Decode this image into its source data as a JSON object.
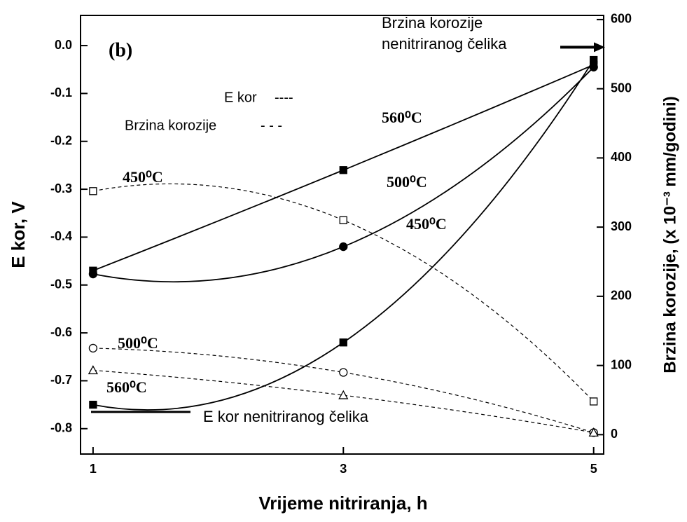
{
  "chart_data": {
    "type": "line",
    "xlabel": "Vrijeme nitriranja, h",
    "ylabel": "E kor, V",
    "y2label": "Brzina korozije, (x 10⁻³ mm/godini)",
    "panel_label": "(b)",
    "x": [
      1,
      3,
      5
    ],
    "xlim": [
      0.9,
      5.08
    ],
    "xticks": [
      1,
      3,
      5
    ],
    "ylim": [
      -0.853,
      0.063
    ],
    "yticks": [
      {
        "value": 0,
        "label": "0.0"
      },
      -0.1,
      -0.2,
      -0.3,
      -0.4,
      -0.5,
      -0.6,
      -0.7,
      -0.8
    ],
    "y2lim": [
      -28,
      606
    ],
    "y2ticks": [
      0,
      100,
      200,
      300,
      400,
      500,
      600
    ],
    "legend": [
      {
        "label": "E kor",
        "sample": "----"
      },
      {
        "label": "Brzina korozije",
        "sample": "- - -"
      }
    ],
    "series": [
      {
        "name": "560⁰C",
        "color": "#000000",
        "axis": "y",
        "dash": "solid",
        "marker": "square-filled",
        "values": [
          -0.47,
          -0.26,
          -0.04
        ]
      },
      {
        "name": "500⁰C",
        "color": "#000000",
        "axis": "y",
        "dash": "solid",
        "marker": "circle-filled",
        "values": [
          -0.477,
          -0.42,
          -0.045
        ]
      },
      {
        "name": "450⁰C",
        "color": "#000000",
        "axis": "y",
        "dash": "solid",
        "marker": "square-filled",
        "values": [
          -0.75,
          -0.62,
          -0.03
        ]
      },
      {
        "name": "450⁰C",
        "color": "#000000",
        "axis": "y2",
        "dash": "dashed",
        "marker": "square-open",
        "values": [
          352,
          310,
          48
        ]
      },
      {
        "name": "500⁰C",
        "color": "#000000",
        "axis": "y2",
        "dash": "dashed",
        "marker": "circle-open",
        "values": [
          125,
          90,
          3
        ]
      },
      {
        "name": "560⁰C",
        "color": "#000000",
        "axis": "y2",
        "dash": "dashed",
        "marker": "triangle-open",
        "values": [
          93,
          57,
          3
        ]
      }
    ],
    "reference_lines": [
      {
        "axis": "y2",
        "value": 560,
        "label_lines": [
          "Brzina korozije",
          "nenitriranog čelika"
        ]
      },
      {
        "axis": "y",
        "value": -0.765,
        "label_lines": [
          "E kor  nenitriranog čelika"
        ]
      }
    ]
  }
}
